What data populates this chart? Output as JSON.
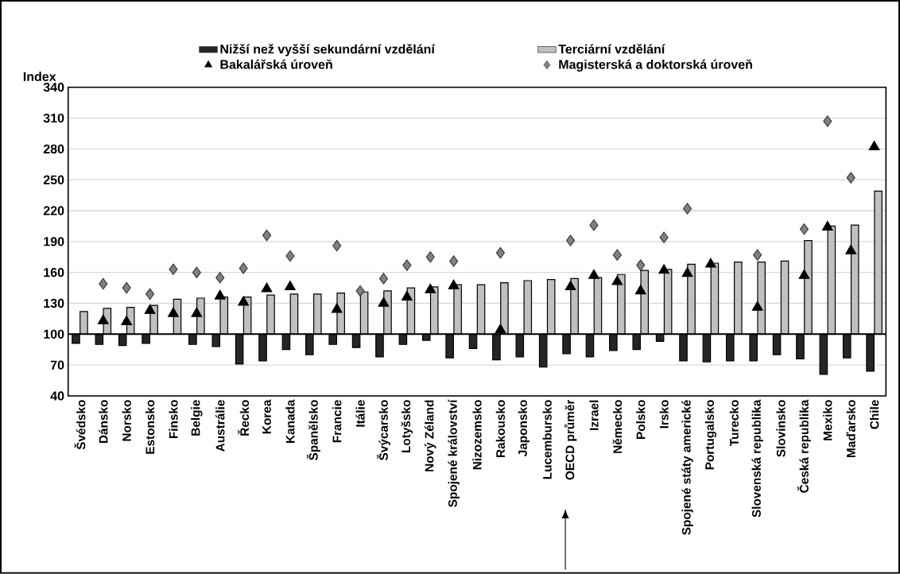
{
  "chart_data": {
    "type": "bar",
    "ylabel": "Index",
    "categories": [
      "Švédsko",
      "Dánsko",
      "Norsko",
      "Estonsko",
      "Finsko",
      "Belgie",
      "Austrálie",
      "Řecko",
      "Korea",
      "Kanada",
      "Španělsko",
      "Francie",
      "Itálie",
      "Švýcarsko",
      "Lotyšsko",
      "Nový Zéland",
      "Spojené království",
      "Nizozemsko",
      "Rakousko",
      "Japonsko",
      "Lucembursko",
      "OECD průměr",
      "Izrael",
      "Německo",
      "Polsko",
      "Irsko",
      "Spojené státy americké",
      "Portugalsko",
      "Turecko",
      "Slovenská republika",
      "Slovinsko",
      "Česká republika",
      "Mexiko",
      "Maďarsko",
      "Chile"
    ],
    "series": [
      {
        "name": "Nižší než vyšší sekundární vzdělání",
        "color": "#262626",
        "base": [
          100,
          100,
          100,
          100,
          null,
          100,
          100,
          100,
          100,
          100,
          100,
          100,
          100,
          100,
          100,
          100,
          100,
          100,
          100,
          100,
          100,
          100,
          100,
          100,
          100,
          100,
          100,
          100,
          100,
          100,
          100,
          100,
          100,
          100,
          100
        ],
        "values": [
          -9,
          -10,
          -11,
          -9,
          null,
          -10,
          -12,
          -29,
          -26,
          -15,
          -20,
          -10,
          -13,
          -22,
          -10,
          -6,
          -23,
          -14,
          -25,
          -22,
          -32,
          -19,
          -22,
          -16,
          -15,
          -7,
          -26,
          -27,
          -26,
          -26,
          -20,
          -24,
          -39,
          -23,
          -36
        ]
      },
      {
        "name": "Terciární vzdělání",
        "color": "#c0c0c0",
        "base": [
          100,
          100,
          100,
          100,
          100,
          100,
          100,
          100,
          100,
          100,
          100,
          100,
          100,
          100,
          100,
          100,
          100,
          100,
          100,
          100,
          100,
          100,
          100,
          100,
          100,
          100,
          100,
          100,
          100,
          100,
          100,
          100,
          100,
          100,
          100
        ],
        "values": [
          22,
          25,
          26,
          28,
          34,
          35,
          36,
          36,
          38,
          39,
          39,
          40,
          41,
          42,
          45,
          46,
          48,
          48,
          50,
          52,
          53,
          54,
          55,
          58,
          62,
          63,
          68,
          69,
          70,
          70,
          71,
          91,
          105,
          106,
          139
        ]
      },
      {
        "name": "Bakalářská úroveň",
        "type": "scatter",
        "marker": "triangle",
        "color": "#000000",
        "values": [
          null,
          113,
          112,
          123,
          120,
          120,
          137,
          131,
          144,
          146,
          null,
          124,
          null,
          130,
          136,
          143,
          147,
          null,
          104,
          null,
          null,
          146,
          157,
          151,
          142,
          162,
          159,
          168,
          null,
          126,
          null,
          157,
          204,
          181,
          282
        ]
      },
      {
        "name": "Magisterská a doktorská úroveň",
        "type": "scatter",
        "marker": "diamond",
        "color": "#808080",
        "values": [
          null,
          149,
          145,
          139,
          163,
          160,
          155,
          164,
          196,
          176,
          null,
          186,
          142,
          154,
          167,
          175,
          171,
          null,
          179,
          null,
          null,
          191,
          206,
          177,
          167,
          194,
          222,
          null,
          null,
          177,
          null,
          202,
          307,
          252,
          null
        ]
      }
    ],
    "ref_lines": [
      {
        "axis": "y",
        "value": 100,
        "color": "#000000"
      }
    ],
    "ylim": [
      40,
      340
    ],
    "yticks": [
      40,
      70,
      100,
      130,
      160,
      190,
      220,
      250,
      280,
      310,
      340
    ],
    "grid": "y",
    "legend": "top"
  }
}
